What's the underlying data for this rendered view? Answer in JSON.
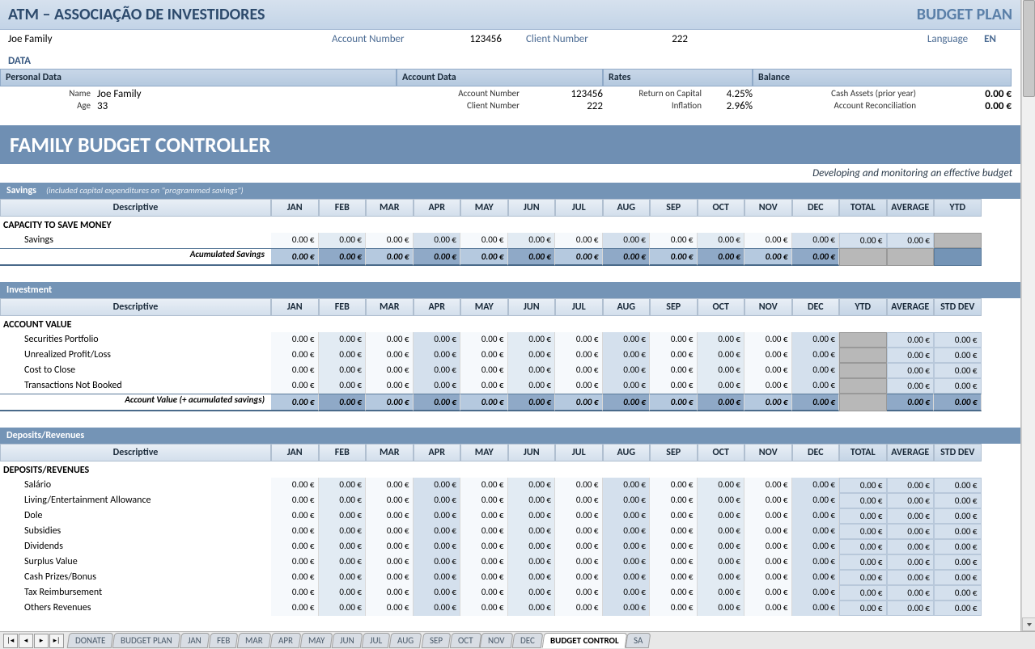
{
  "header": {
    "org_title": "ATM – ASSOCIAÇÃO DE INVESTIDORES",
    "plan_title": "BUDGET PLAN",
    "client_name": "Joe Family",
    "account_number_label": "Account Number",
    "account_number": "123456",
    "client_number_label": "Client Number",
    "client_number": "222",
    "language_label": "Language",
    "language": "EN"
  },
  "data_title": "DATA",
  "data_headers": {
    "personal": "Personal Data",
    "account": "Account Data",
    "rates": "Rates",
    "balance": "Balance"
  },
  "personal": {
    "name_label": "Name",
    "name": "Joe Family",
    "age_label": "Age",
    "age": "33"
  },
  "account": {
    "acct_label": "Account Number",
    "acct": "123456",
    "client_label": "Client Number",
    "client": "222"
  },
  "rates": {
    "roc_label": "Return on Capital",
    "roc": "4.25%",
    "infl_label": "Inflation",
    "infl": "2.96%"
  },
  "balance": {
    "cash_label": "Cash Assets (prior year)",
    "cash": "0.00 €",
    "recon_label": "Account Reconciliation",
    "recon": "0.00 €"
  },
  "controller_title": "FAMILY BUDGET CONTROLLER",
  "tagline": "Developing and monitoring an effective budget",
  "months": [
    "JAN",
    "FEB",
    "MAR",
    "APR",
    "MAY",
    "JUN",
    "JUL",
    "AUG",
    "SEP",
    "OCT",
    "NOV",
    "DEC"
  ],
  "descriptive_label": "Descriptive",
  "zero": "0.00 €",
  "savings": {
    "title": "Savings",
    "subtitle": "(included capital expenditures on \"programmed savings\")",
    "summary_cols": [
      "TOTAL",
      "AVERAGE",
      "YTD"
    ],
    "section": "CAPACITY TO SAVE MONEY",
    "row1": "Savings",
    "total_row": "Acumulated Savings"
  },
  "investment": {
    "title": "Investment",
    "summary_cols": [
      "YTD",
      "AVERAGE",
      "STD DEV"
    ],
    "section": "ACCOUNT VALUE",
    "rows": [
      "Securities Portfolio",
      "Unrealized Profit/Loss",
      "Cost to Close",
      "Transactions Not Booked"
    ],
    "total_row": "Account Value (+ acumulated savings)"
  },
  "deposits": {
    "title": "Deposits/Revenues",
    "summary_cols": [
      "TOTAL",
      "AVERAGE",
      "STD DEV"
    ],
    "section": "DEPOSITS/REVENUES",
    "rows": [
      "Salário",
      "Living/Entertainment Allowance",
      "Dole",
      "Subsidies",
      "Dividends",
      "Surplus Value",
      "Cash Prizes/Bonus",
      "Tax Reimbursement",
      "Others Revenues"
    ]
  },
  "tabs": {
    "list": [
      "DONATE",
      "BUDGET PLAN",
      "JAN",
      "FEB",
      "MAR",
      "APR",
      "MAY",
      "JUN",
      "JUL",
      "AUG",
      "SEP",
      "OCT",
      "NOV",
      "DEC",
      "BUDGET CONTROL",
      "SA"
    ],
    "active": "BUDGET CONTROL"
  },
  "colors": {
    "header_gradient_top": "#d6e1ee",
    "header_gradient_bottom": "#c3d4e7",
    "header_text": "#2d4a6c",
    "plan_text": "#5a7fa8",
    "section_bar": "#7494b6",
    "controller_bar": "#6f8fb3",
    "cell_alt1": "#e2ebf3",
    "cell_alt2": "#d4e0ed",
    "total_row_bg": "#b5c9df",
    "total_row_dark_bg": "#8fa9c7",
    "sumdark": "#7494b6",
    "sumgray": "#b8b8b8"
  }
}
